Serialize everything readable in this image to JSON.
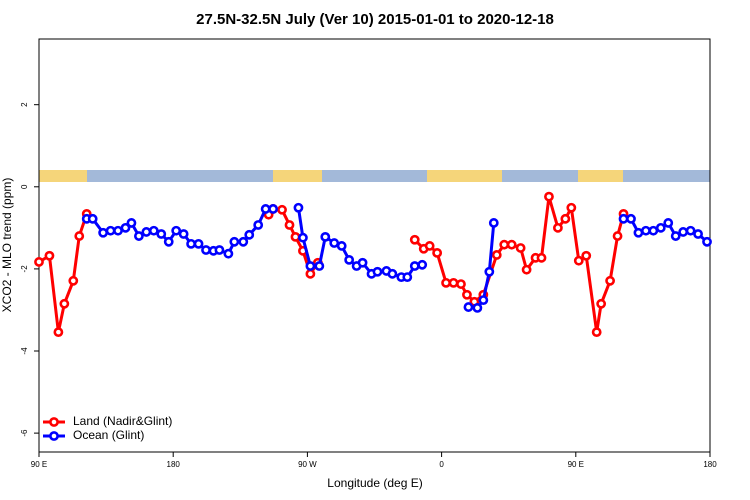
{
  "chart_data": {
    "type": "line",
    "title": "27.5N-32.5N July (Ver 10)   2015-01-01 to 2020-12-18",
    "x_label": "Longitude (deg E)",
    "y_label": "XCO2 - MLO trend (ppm)",
    "xlim": [
      90,
      540
    ],
    "ylim": [
      -6.46,
      3.6
    ],
    "xticks": [
      {
        "value": 90,
        "label": "90 E"
      },
      {
        "value": 180,
        "label": "180"
      },
      {
        "value": 270,
        "label": "90 W"
      },
      {
        "value": 360,
        "label": "0"
      },
      {
        "value": 450,
        "label": "90 E"
      },
      {
        "value": 540,
        "label": "180"
      }
    ],
    "yticks": [
      -6,
      -4,
      -2,
      0,
      2
    ],
    "legend": "bottom-left",
    "series": [
      {
        "name": "Land (Nadir&Glint)",
        "color": "#ff0000",
        "x": [
          90,
          97,
          103,
          107,
          113,
          117,
          122,
          null,
          244,
          247,
          253,
          258,
          262,
          267,
          272,
          277,
          null,
          342,
          348,
          352,
          357,
          363,
          368,
          373,
          377,
          382,
          388,
          397,
          402,
          407,
          413,
          417,
          423,
          427,
          432,
          438,
          443,
          447,
          452,
          457,
          464,
          467,
          473,
          478,
          482
        ],
        "values": [
          -1.83,
          -1.68,
          -3.54,
          -2.85,
          -2.29,
          -1.2,
          -0.66,
          null,
          -0.68,
          -0.54,
          -0.56,
          -0.93,
          -1.22,
          -1.56,
          -2.12,
          -1.85,
          null,
          -1.29,
          -1.51,
          -1.44,
          -1.61,
          -2.34,
          -2.34,
          -2.37,
          -2.63,
          -2.8,
          -2.63,
          -1.66,
          -1.41,
          -1.41,
          -1.49,
          -2.02,
          -1.73,
          -1.73,
          -0.24,
          -1.0,
          -0.78,
          -0.51,
          -1.8,
          -1.68,
          -3.54,
          -2.85,
          -2.29,
          -1.2,
          -0.66
        ]
      },
      {
        "name": "Ocean (Glint)",
        "color": "#0000ff",
        "x": [
          122,
          126,
          133,
          138,
          143,
          148,
          152,
          157,
          162,
          167,
          172,
          177,
          182,
          187,
          192,
          197,
          202,
          207,
          211,
          217,
          221,
          227,
          231,
          237,
          242,
          247,
          null,
          264,
          267,
          272,
          278,
          282,
          288,
          293,
          298,
          303,
          307,
          313,
          317,
          323,
          327,
          333,
          337,
          342,
          347,
          null,
          378,
          384,
          388,
          392,
          395,
          null,
          482,
          487,
          492,
          497,
          502,
          507,
          512,
          517,
          522,
          527,
          532,
          538
        ],
        "values": [
          -0.78,
          -0.78,
          -1.12,
          -1.07,
          -1.07,
          -1.0,
          -0.88,
          -1.2,
          -1.1,
          -1.07,
          -1.15,
          -1.34,
          -1.07,
          -1.15,
          -1.39,
          -1.39,
          -1.54,
          -1.56,
          -1.54,
          -1.63,
          -1.34,
          -1.34,
          -1.17,
          -0.93,
          -0.54,
          -0.54,
          null,
          -0.51,
          -1.24,
          -1.93,
          -1.93,
          -1.22,
          -1.37,
          -1.44,
          -1.78,
          -1.93,
          -1.85,
          -2.12,
          -2.07,
          -2.05,
          -2.12,
          -2.2,
          -2.2,
          -1.93,
          -1.9,
          null,
          -2.93,
          -2.95,
          -2.76,
          -2.07,
          -0.88,
          null,
          -0.78,
          -0.78,
          -1.12,
          -1.07,
          -1.07,
          -1.0,
          -0.88,
          -1.2,
          -1.1,
          -1.07,
          -1.15,
          -1.34
        ]
      }
    ]
  }
}
